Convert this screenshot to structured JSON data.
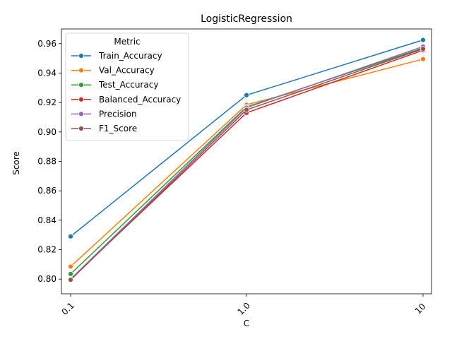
{
  "chart_data": {
    "type": "line",
    "title": "LogisticRegression",
    "xlabel": "C",
    "ylabel": "Score",
    "categories": [
      "0.1",
      "1.0",
      "10"
    ],
    "ylim": [
      0.79,
      0.97
    ],
    "yticks": [
      "0.80",
      "0.82",
      "0.84",
      "0.86",
      "0.88",
      "0.90",
      "0.92",
      "0.94",
      "0.96"
    ],
    "grid": false,
    "legend": {
      "title": "Metric",
      "placement": "upper-left"
    },
    "series": [
      {
        "name": "Train_Accuracy",
        "color": "#1f77b4",
        "values": [
          0.829,
          0.925,
          0.9625
        ]
      },
      {
        "name": "Val_Accuracy",
        "color": "#ff7f0e",
        "values": [
          0.8085,
          0.9185,
          0.9495
        ]
      },
      {
        "name": "Test_Accuracy",
        "color": "#2ca02c",
        "values": [
          0.8035,
          0.917,
          0.957
        ]
      },
      {
        "name": "Balanced_Accuracy",
        "color": "#d62728",
        "values": [
          0.8,
          0.913,
          0.9555
        ]
      },
      {
        "name": "Precision",
        "color": "#9467bd",
        "values": [
          0.8,
          0.9165,
          0.958
        ]
      },
      {
        "name": "F1_Score",
        "color": "#8c564b",
        "values": [
          0.7995,
          0.915,
          0.9565
        ]
      }
    ]
  }
}
